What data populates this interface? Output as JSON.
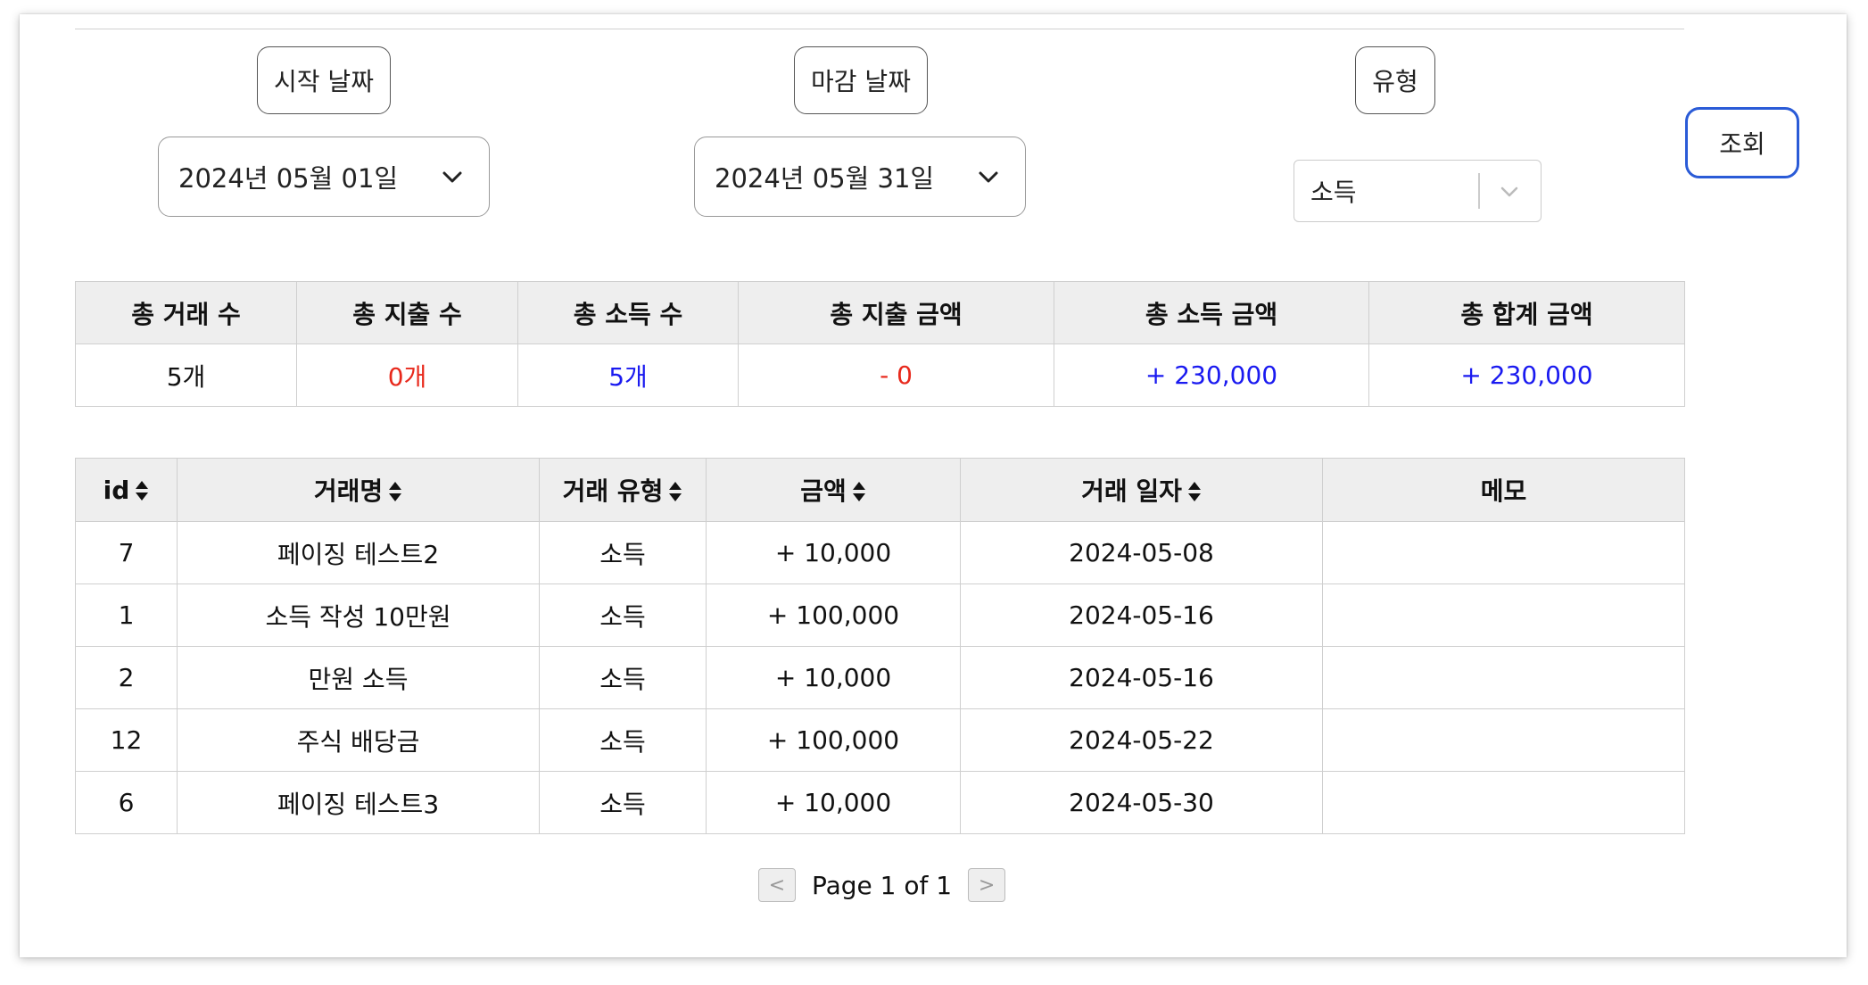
{
  "filters": {
    "start_label": "시작 날짜",
    "end_label": "마감 날짜",
    "type_label": "유형",
    "start_date": "2024년 05월 01일",
    "end_date": "2024년 05월 31일",
    "type_value": "소득",
    "search_label": "조회"
  },
  "summary": {
    "headers": [
      "총 거래 수",
      "총 지출 수",
      "총 소득 수",
      "총 지출 금액",
      "총 소득 금액",
      "총 합계 금액"
    ],
    "values": [
      "5개",
      "0개",
      "5개",
      "- 0",
      "+ 230,000",
      "+ 230,000"
    ]
  },
  "table": {
    "headers": [
      "id",
      "거래명",
      "거래 유형",
      "금액",
      "거래 일자",
      "메모"
    ],
    "rows": [
      {
        "id": "7",
        "name": "페이징 테스트2",
        "type": "소득",
        "amount": "+ 10,000",
        "date": "2024-05-08",
        "memo": ""
      },
      {
        "id": "1",
        "name": "소득 작성 10만원",
        "type": "소득",
        "amount": "+ 100,000",
        "date": "2024-05-16",
        "memo": ""
      },
      {
        "id": "2",
        "name": "만원 소득",
        "type": "소득",
        "amount": "+ 10,000",
        "date": "2024-05-16",
        "memo": ""
      },
      {
        "id": "12",
        "name": "주식 배당금",
        "type": "소득",
        "amount": "+ 100,000",
        "date": "2024-05-22",
        "memo": ""
      },
      {
        "id": "6",
        "name": "페이징 테스트3",
        "type": "소득",
        "amount": "+ 10,000",
        "date": "2024-05-30",
        "memo": ""
      }
    ]
  },
  "pagination": {
    "prev": "<",
    "next": ">",
    "text": "Page 1 of 1"
  },
  "colors": {
    "expense": "#e8291c",
    "income": "#1a1af0",
    "accent": "#2a5bd7"
  }
}
